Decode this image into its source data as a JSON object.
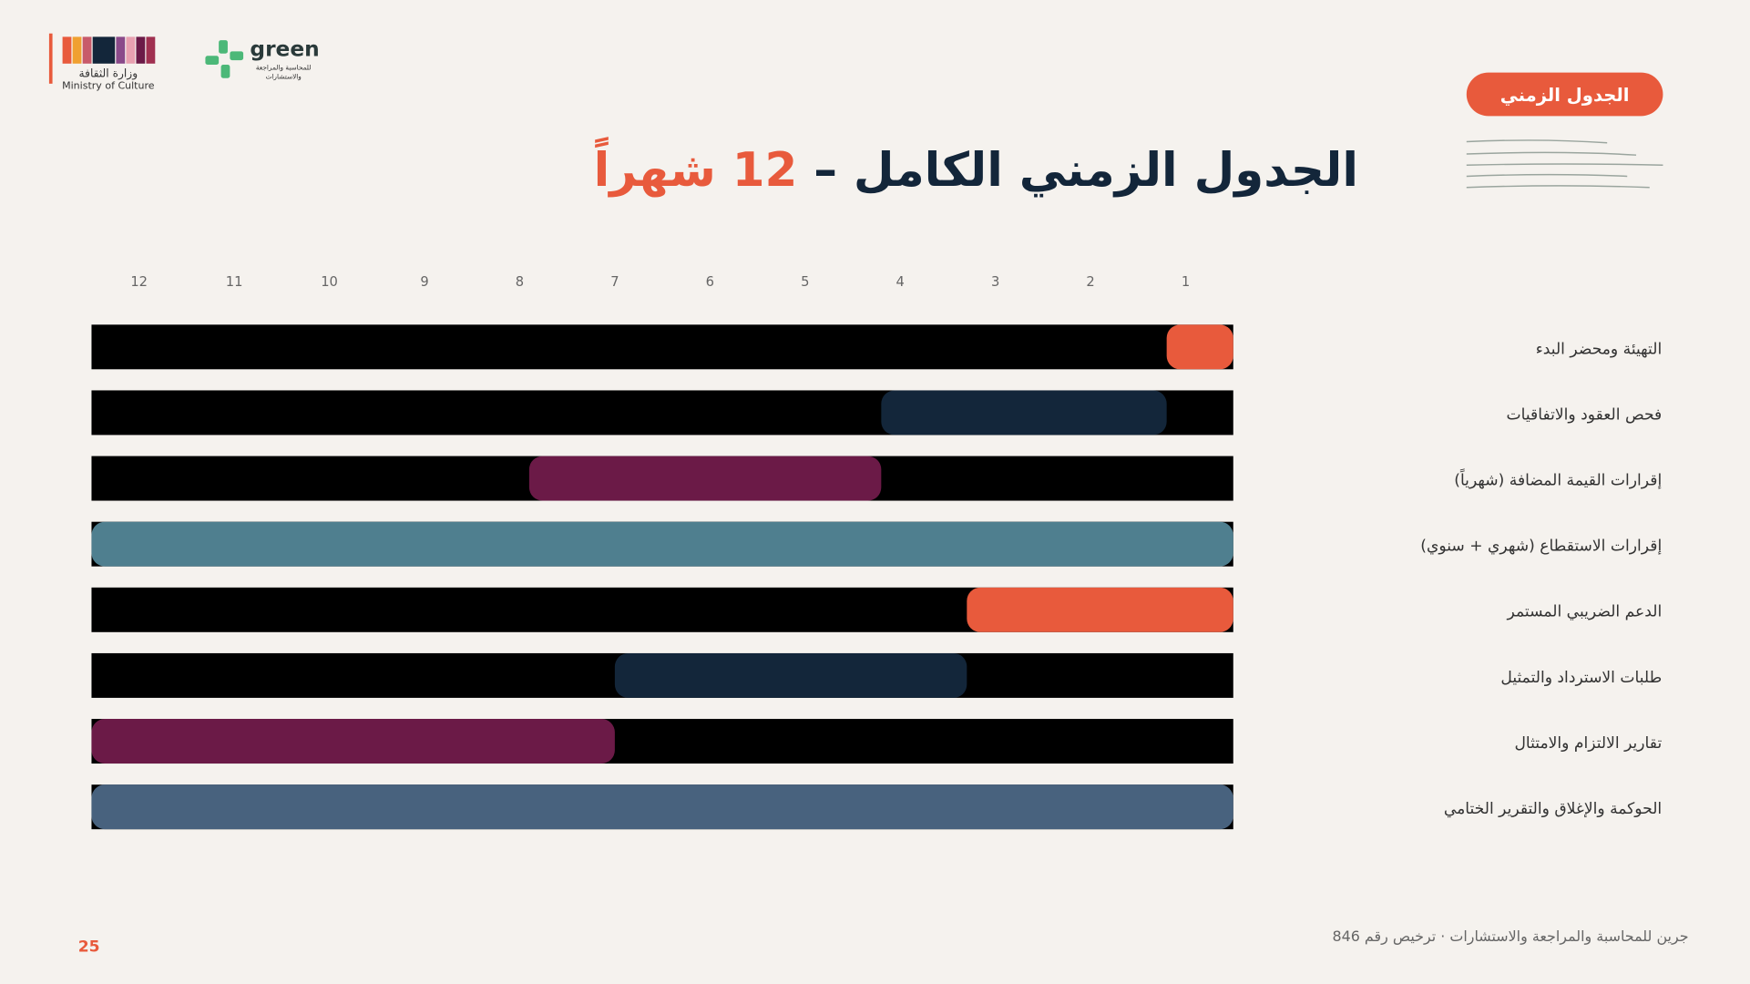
{
  "header": {
    "ministry_ar": "وزارة الثقافة",
    "ministry_en": "Ministry of Culture",
    "brand": "green",
    "brand_sub1": "للمحاسبة والمراجعة",
    "brand_sub2": "والاستشارات",
    "badge": "الجدول الزمني"
  },
  "chart_data": {
    "type": "gantt",
    "title": "الجدول الزمني الكامل – ",
    "title_highlight": "12 شهراً",
    "categories": [
      "التهيئة ومحضر البدء",
      "فحص العقود والاتفاقيات",
      "إقرارات القيمة المضافة (شهرياً)",
      "إقرارات الاستقطاع (شهري + سنوي)",
      "الدعم الضريبي المستمر",
      "طلبات الاسترداد والتمثيل",
      "تقارير الالتزام والامتثال",
      "الحوكمة والإغلاق والتقرير الختامي"
    ],
    "start": [
      0,
      0.7,
      3.7,
      0,
      0,
      2.8,
      6.5,
      0
    ],
    "end": [
      0.7,
      3.7,
      7.4,
      12,
      2.8,
      6.5,
      12,
      12
    ],
    "colors": [
      "#e85a3c",
      "#13263a",
      "#6b1a47",
      "#4f7f8f",
      "#e85a3c",
      "#13263a",
      "#6b1a47",
      "#48627e"
    ],
    "track_color": "#000000",
    "xlim": [
      12,
      0
    ],
    "xticks": [
      1,
      2,
      3,
      4,
      5,
      6,
      7,
      8,
      9,
      10,
      11,
      12
    ]
  },
  "footer": {
    "text": "جرين للمحاسبة والمراجعة والاستشارات · ترخيص رقم 846",
    "page": "25"
  }
}
